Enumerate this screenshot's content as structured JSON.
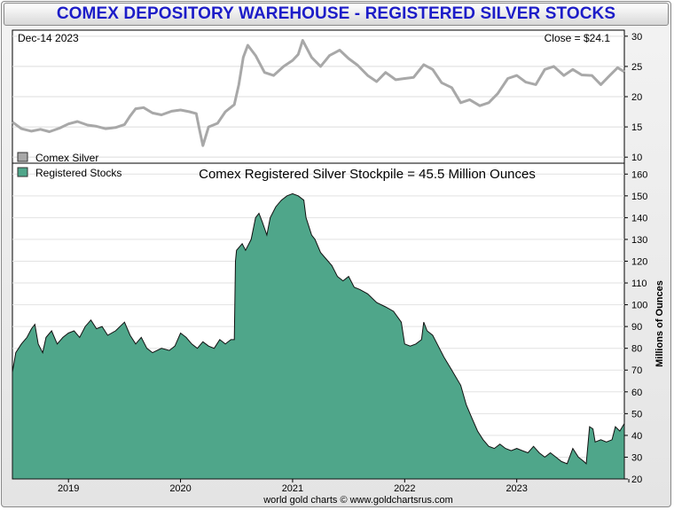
{
  "title": "COMEX DEPOSITORY WAREHOUSE - REGISTERED SILVER STOCKS",
  "credit": "world gold charts © www.goldchartsrus.com",
  "colors": {
    "silver_line": "#a8a8a8",
    "stocks_fill": "#4fa68a",
    "stocks_edge": "#111111",
    "title_text": "#1c1cc8"
  },
  "chart_data": [
    {
      "type": "line",
      "date_label": "Dec-14  2023",
      "close_label": "Close = $24.1",
      "legend": [
        "Comex Silver"
      ],
      "ylim": [
        9,
        31
      ],
      "yticks": [
        10,
        15,
        20,
        25,
        30
      ],
      "x_range": [
        2018.5,
        2023.96
      ],
      "series": [
        {
          "name": "Comex Silver",
          "points": [
            [
              2018.5,
              15.8
            ],
            [
              2018.58,
              14.7
            ],
            [
              2018.67,
              14.3
            ],
            [
              2018.75,
              14.6
            ],
            [
              2018.83,
              14.2
            ],
            [
              2018.92,
              14.8
            ],
            [
              2019.0,
              15.5
            ],
            [
              2019.08,
              15.9
            ],
            [
              2019.17,
              15.3
            ],
            [
              2019.25,
              15.1
            ],
            [
              2019.33,
              14.7
            ],
            [
              2019.42,
              14.9
            ],
            [
              2019.5,
              15.4
            ],
            [
              2019.55,
              16.8
            ],
            [
              2019.6,
              18.0
            ],
            [
              2019.67,
              18.2
            ],
            [
              2019.75,
              17.3
            ],
            [
              2019.83,
              17.0
            ],
            [
              2019.92,
              17.6
            ],
            [
              2020.0,
              17.8
            ],
            [
              2020.08,
              17.5
            ],
            [
              2020.14,
              17.2
            ],
            [
              2020.17,
              14.5
            ],
            [
              2020.2,
              11.9
            ],
            [
              2020.25,
              15.0
            ],
            [
              2020.33,
              15.6
            ],
            [
              2020.4,
              17.5
            ],
            [
              2020.48,
              18.7
            ],
            [
              2020.52,
              22.0
            ],
            [
              2020.56,
              26.5
            ],
            [
              2020.6,
              28.5
            ],
            [
              2020.67,
              26.8
            ],
            [
              2020.75,
              24.0
            ],
            [
              2020.83,
              23.5
            ],
            [
              2020.92,
              25.0
            ],
            [
              2021.0,
              26.0
            ],
            [
              2021.05,
              27.0
            ],
            [
              2021.09,
              29.3
            ],
            [
              2021.17,
              26.5
            ],
            [
              2021.25,
              25.0
            ],
            [
              2021.33,
              26.8
            ],
            [
              2021.42,
              27.7
            ],
            [
              2021.5,
              26.3
            ],
            [
              2021.58,
              25.2
            ],
            [
              2021.67,
              23.5
            ],
            [
              2021.75,
              22.5
            ],
            [
              2021.83,
              24.0
            ],
            [
              2021.92,
              22.8
            ],
            [
              2022.0,
              23.0
            ],
            [
              2022.08,
              23.2
            ],
            [
              2022.17,
              25.3
            ],
            [
              2022.25,
              24.5
            ],
            [
              2022.33,
              22.3
            ],
            [
              2022.42,
              21.5
            ],
            [
              2022.5,
              19.0
            ],
            [
              2022.58,
              19.5
            ],
            [
              2022.67,
              18.5
            ],
            [
              2022.75,
              19.0
            ],
            [
              2022.83,
              20.5
            ],
            [
              2022.92,
              23.0
            ],
            [
              2023.0,
              23.5
            ],
            [
              2023.08,
              22.4
            ],
            [
              2023.17,
              22.0
            ],
            [
              2023.25,
              24.5
            ],
            [
              2023.33,
              25.0
            ],
            [
              2023.42,
              23.5
            ],
            [
              2023.5,
              24.5
            ],
            [
              2023.58,
              23.6
            ],
            [
              2023.67,
              23.5
            ],
            [
              2023.75,
              22.0
            ],
            [
              2023.83,
              23.5
            ],
            [
              2023.9,
              24.8
            ],
            [
              2023.96,
              24.1
            ]
          ]
        }
      ]
    },
    {
      "type": "area",
      "subtitle": "Comex Registered Silver Stockpile = 45.5 Million Ounces",
      "legend": [
        "Registered Stocks"
      ],
      "ylabel": "Millions of Ounces",
      "ylim": [
        20,
        165
      ],
      "yticks": [
        20,
        30,
        40,
        50,
        60,
        70,
        80,
        90,
        100,
        110,
        120,
        130,
        140,
        150,
        160
      ],
      "x_range": [
        2018.5,
        2023.96
      ],
      "xticks": [
        "2019",
        "2020",
        "2021",
        "2022",
        "2023"
      ],
      "series": [
        {
          "name": "Registered Stocks",
          "points": [
            [
              2018.5,
              69
            ],
            [
              2018.53,
              78
            ],
            [
              2018.58,
              82
            ],
            [
              2018.63,
              85
            ],
            [
              2018.67,
              89
            ],
            [
              2018.7,
              91
            ],
            [
              2018.73,
              82
            ],
            [
              2018.77,
              78
            ],
            [
              2018.8,
              85
            ],
            [
              2018.85,
              88
            ],
            [
              2018.9,
              82
            ],
            [
              2018.95,
              85
            ],
            [
              2019.0,
              87
            ],
            [
              2019.05,
              88
            ],
            [
              2019.1,
              85
            ],
            [
              2019.15,
              90
            ],
            [
              2019.2,
              93
            ],
            [
              2019.25,
              89
            ],
            [
              2019.3,
              90
            ],
            [
              2019.35,
              86
            ],
            [
              2019.42,
              88
            ],
            [
              2019.5,
              92
            ],
            [
              2019.55,
              86
            ],
            [
              2019.6,
              82
            ],
            [
              2019.65,
              85
            ],
            [
              2019.7,
              80
            ],
            [
              2019.75,
              78
            ],
            [
              2019.83,
              80
            ],
            [
              2019.9,
              79
            ],
            [
              2019.95,
              81
            ],
            [
              2020.0,
              87
            ],
            [
              2020.05,
              85
            ],
            [
              2020.1,
              82
            ],
            [
              2020.15,
              80
            ],
            [
              2020.2,
              83
            ],
            [
              2020.25,
              81
            ],
            [
              2020.3,
              80
            ],
            [
              2020.35,
              84
            ],
            [
              2020.4,
              82
            ],
            [
              2020.45,
              84
            ],
            [
              2020.48,
              84
            ],
            [
              2020.49,
              120
            ],
            [
              2020.5,
              125
            ],
            [
              2020.55,
              128
            ],
            [
              2020.58,
              125
            ],
            [
              2020.63,
              130
            ],
            [
              2020.67,
              140
            ],
            [
              2020.7,
              142
            ],
            [
              2020.73,
              138
            ],
            [
              2020.77,
              132
            ],
            [
              2020.8,
              140
            ],
            [
              2020.85,
              145
            ],
            [
              2020.9,
              148
            ],
            [
              2020.95,
              150
            ],
            [
              2021.0,
              151
            ],
            [
              2021.05,
              150
            ],
            [
              2021.1,
              148
            ],
            [
              2021.12,
              140
            ],
            [
              2021.17,
              132
            ],
            [
              2021.2,
              130
            ],
            [
              2021.25,
              124
            ],
            [
              2021.3,
              121
            ],
            [
              2021.35,
              118
            ],
            [
              2021.4,
              113
            ],
            [
              2021.45,
              111
            ],
            [
              2021.5,
              113
            ],
            [
              2021.55,
              108
            ],
            [
              2021.6,
              107
            ],
            [
              2021.67,
              105
            ],
            [
              2021.75,
              101
            ],
            [
              2021.83,
              99
            ],
            [
              2021.9,
              97
            ],
            [
              2021.97,
              92
            ],
            [
              2022.0,
              82
            ],
            [
              2022.05,
              81
            ],
            [
              2022.1,
              82
            ],
            [
              2022.15,
              84
            ],
            [
              2022.17,
              92
            ],
            [
              2022.2,
              88
            ],
            [
              2022.25,
              86
            ],
            [
              2022.3,
              81
            ],
            [
              2022.35,
              76
            ],
            [
              2022.42,
              70
            ],
            [
              2022.5,
              63
            ],
            [
              2022.55,
              54
            ],
            [
              2022.6,
              48
            ],
            [
              2022.65,
              42
            ],
            [
              2022.7,
              38
            ],
            [
              2022.75,
              35
            ],
            [
              2022.8,
              34
            ],
            [
              2022.85,
              36
            ],
            [
              2022.9,
              34
            ],
            [
              2022.95,
              33
            ],
            [
              2023.0,
              34
            ],
            [
              2023.05,
              33
            ],
            [
              2023.1,
              32
            ],
            [
              2023.15,
              35
            ],
            [
              2023.2,
              32
            ],
            [
              2023.25,
              30
            ],
            [
              2023.3,
              32
            ],
            [
              2023.35,
              30
            ],
            [
              2023.4,
              28
            ],
            [
              2023.45,
              27
            ],
            [
              2023.5,
              34
            ],
            [
              2023.55,
              30
            ],
            [
              2023.6,
              28
            ],
            [
              2023.62,
              27
            ],
            [
              2023.65,
              44
            ],
            [
              2023.68,
              43
            ],
            [
              2023.7,
              37
            ],
            [
              2023.75,
              38
            ],
            [
              2023.8,
              37
            ],
            [
              2023.85,
              38
            ],
            [
              2023.88,
              44
            ],
            [
              2023.92,
              42
            ],
            [
              2023.96,
              45.5
            ]
          ]
        }
      ]
    }
  ]
}
